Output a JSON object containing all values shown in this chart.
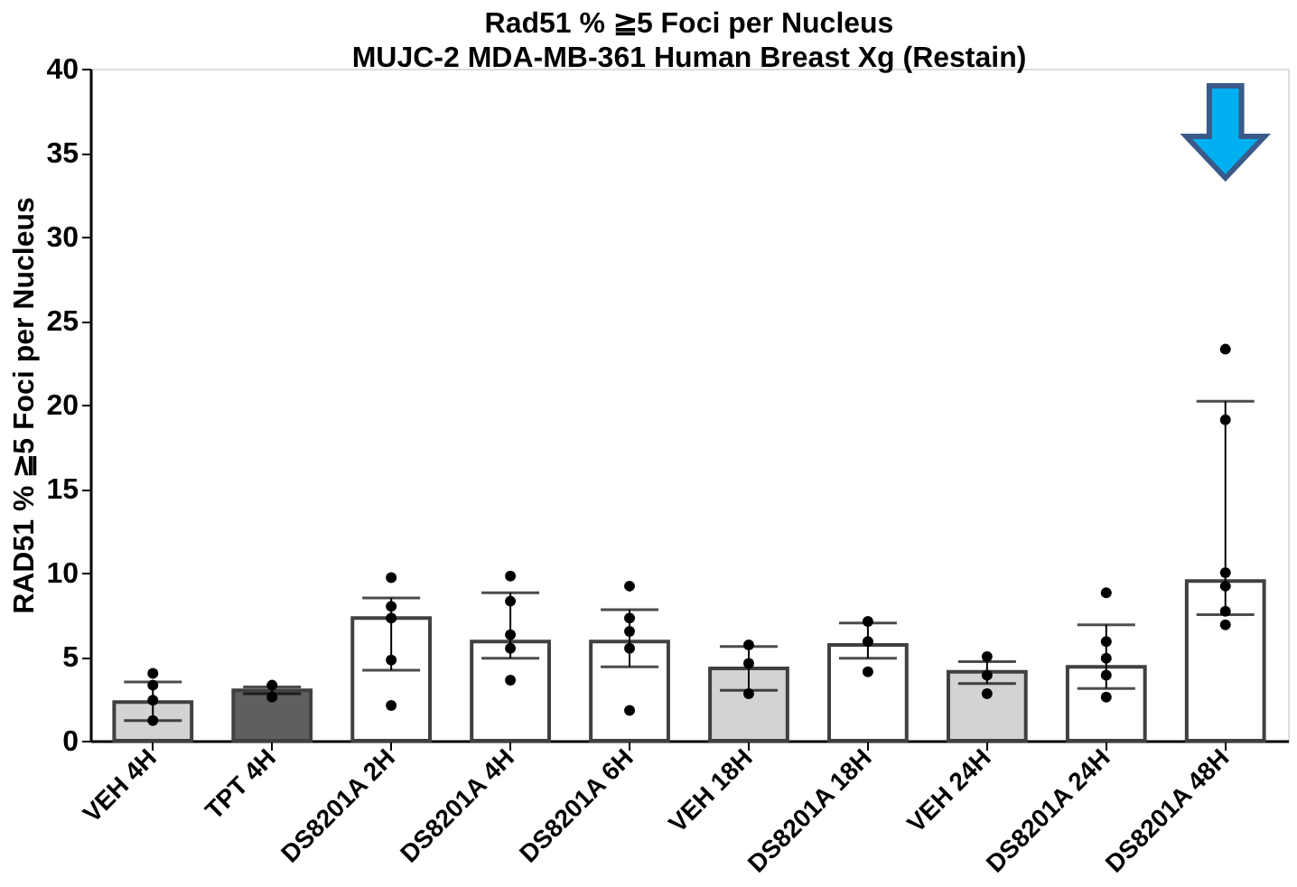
{
  "chart_data": {
    "type": "bar",
    "title": "Rad51 % ≧5 Foci per Nucleus",
    "subtitle": "MUJC-2 MDA-MB-361 Human Breast Xg (Restain)",
    "ylabel": "RAD51 % ≧5 Foci per Nucleus",
    "categories": [
      "VEH 4H",
      "TPT 4H",
      "DS8201A 2H",
      "DS8201A 4H",
      "DS8201A 6H",
      "VEH 18H",
      "DS8201A 18H",
      "VEH 24H",
      "DS8201A 24H",
      "DS8201A 48H"
    ],
    "series": [
      {
        "values": [
          2.3,
          3.0,
          7.3,
          5.9,
          5.9,
          4.3,
          5.7,
          4.1,
          4.4,
          9.5
        ],
        "colors": [
          "#d3d3d3",
          "#5f5f5f",
          "#ffffff",
          "#ffffff",
          "#ffffff",
          "#d3d3d3",
          "#ffffff",
          "#d3d3d3",
          "#ffffff",
          "#ffffff"
        ],
        "errors": [
          [
            1.2,
            3.5
          ],
          [
            2.8,
            3.2
          ],
          [
            4.2,
            8.5
          ],
          [
            4.9,
            8.8
          ],
          [
            4.4,
            7.8
          ],
          [
            3.0,
            5.6
          ],
          [
            4.9,
            7.0
          ],
          [
            3.4,
            4.7
          ],
          [
            3.1,
            6.9
          ],
          [
            7.5,
            20.2
          ]
        ]
      },
      {
        "type": "scatter",
        "color": "#000000",
        "x": [
          "VEH 4H",
          "VEH 4H",
          "VEH 4H",
          "VEH 4H",
          "TPT 4H",
          "TPT 4H",
          "DS8201A 2H",
          "DS8201A 2H",
          "DS8201A 2H",
          "DS8201A 2H",
          "DS8201A 2H",
          "DS8201A 4H",
          "DS8201A 4H",
          "DS8201A 4H",
          "DS8201A 4H",
          "DS8201A 4H",
          "DS8201A 6H",
          "DS8201A 6H",
          "DS8201A 6H",
          "DS8201A 6H",
          "DS8201A 6H",
          "VEH 18H",
          "VEH 18H",
          "VEH 18H",
          "DS8201A 18H",
          "DS8201A 18H",
          "DS8201A 18H",
          "VEH 24H",
          "VEH 24H",
          "VEH 24H",
          "DS8201A 24H",
          "DS8201A 24H",
          "DS8201A 24H",
          "DS8201A 24H",
          "DS8201A 24H",
          "DS8201A 48H",
          "DS8201A 48H",
          "DS8201A 48H",
          "DS8201A 48H",
          "DS8201A 48H",
          "DS8201A 48H"
        ],
        "values": [
          4.0,
          3.3,
          2.4,
          1.2,
          3.3,
          2.6,
          9.7,
          8.0,
          7.3,
          4.8,
          2.1,
          9.8,
          8.3,
          6.3,
          5.5,
          3.6,
          9.2,
          7.3,
          6.5,
          5.5,
          1.8,
          5.7,
          4.6,
          2.8,
          7.1,
          5.9,
          4.1,
          5.0,
          3.9,
          2.8,
          8.8,
          5.9,
          4.9,
          3.9,
          2.6,
          23.3,
          19.1,
          10.0,
          9.2,
          7.7,
          6.9
        ]
      }
    ],
    "ylim": [
      0,
      40
    ],
    "yticks": [
      0,
      5,
      10,
      15,
      20,
      25,
      30,
      35,
      40
    ],
    "grid": false,
    "marker": "circle"
  }
}
